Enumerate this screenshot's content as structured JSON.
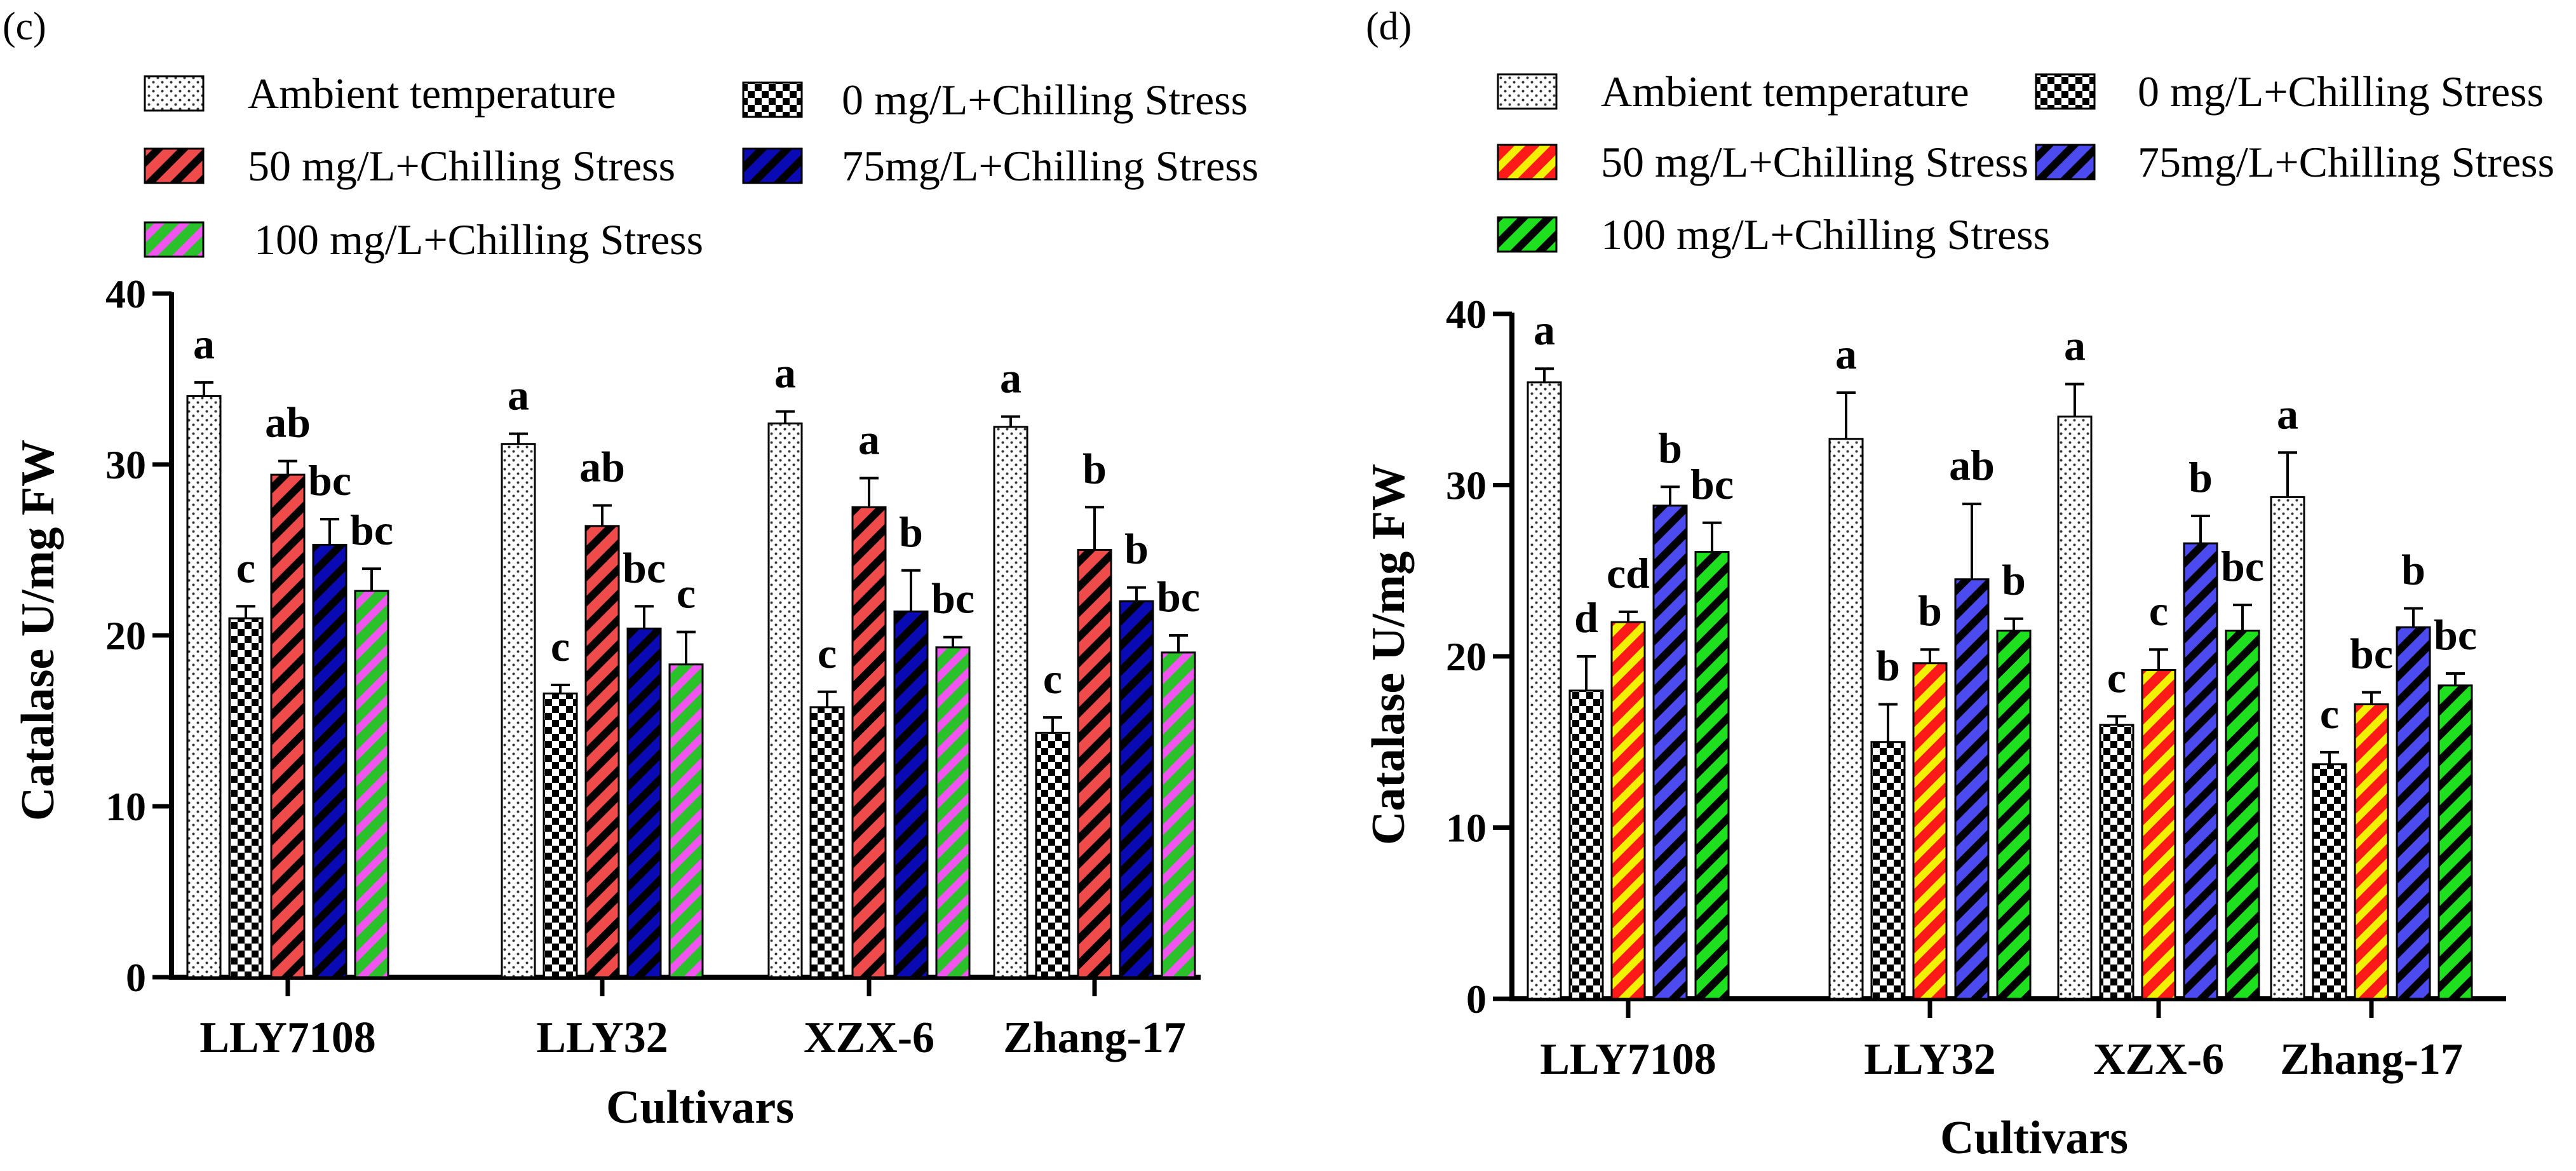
{
  "chart_data": [
    {
      "type": "bar",
      "panel": "(c)",
      "title": "",
      "xlabel": "Cultivars",
      "ylabel": "Catalase U/mg FW",
      "ylim": [
        0,
        40
      ],
      "yticks": [
        "0",
        "10",
        "20",
        "30",
        "40"
      ],
      "categories": [
        "LLY7108",
        "LLY32",
        "XZX-6",
        "Zhang-17"
      ],
      "series": [
        {
          "name": "Ambient temperature",
          "pattern": "dots",
          "colors": [
            "#ffffff",
            "#333333"
          ],
          "values": [
            34.0,
            31.2,
            32.4,
            32.2
          ],
          "errors": [
            0.8,
            0.6,
            0.7,
            0.6
          ],
          "labels": [
            "a",
            "a",
            "a",
            "a"
          ]
        },
        {
          "name": "0 mg/L+Chilling Stress",
          "pattern": "checker",
          "colors": [
            "#ffffff",
            "#000000"
          ],
          "values": [
            21.0,
            16.6,
            15.8,
            14.3
          ],
          "errors": [
            0.7,
            0.5,
            0.9,
            0.9
          ],
          "labels": [
            "c",
            "c",
            "c",
            "c"
          ]
        },
        {
          "name": "50 mg/L+Chilling Stress",
          "pattern": "stripes",
          "colors": [
            "#ef4b4b",
            "#000000"
          ],
          "values": [
            29.4,
            26.4,
            27.5,
            25.0
          ],
          "errors": [
            0.8,
            1.2,
            1.7,
            2.5
          ],
          "labels": [
            "ab",
            "ab",
            "a",
            "b"
          ]
        },
        {
          "name": "75mg/L+Chilling Stress",
          "pattern": "stripes",
          "colors": [
            "#0a0ab4",
            "#000000"
          ],
          "values": [
            25.3,
            20.4,
            21.4,
            22.0
          ],
          "errors": [
            1.5,
            1.3,
            2.4,
            0.8
          ],
          "labels": [
            "bc",
            "bc",
            "b",
            "b"
          ]
        },
        {
          "name": "100 mg/L+Chilling Stress",
          "pattern": "stripes",
          "colors": [
            "#2bc12b",
            "#f055f0"
          ],
          "values": [
            22.6,
            18.3,
            19.3,
            19.0
          ],
          "errors": [
            1.3,
            1.9,
            0.6,
            1.0
          ],
          "labels": [
            "bc",
            "c",
            "bc",
            "bc"
          ]
        }
      ]
    },
    {
      "type": "bar",
      "panel": "(d)",
      "title": "",
      "xlabel": "Cultivars",
      "ylabel": "Catalase U/mg FW",
      "ylim": [
        0,
        40
      ],
      "yticks": [
        "0",
        "10",
        "20",
        "30",
        "40"
      ],
      "categories": [
        "LLY7108",
        "LLY32",
        "XZX-6",
        "Zhang-17"
      ],
      "series": [
        {
          "name": "Ambient temperature",
          "pattern": "dots",
          "colors": [
            "#ffffff",
            "#333333"
          ],
          "values": [
            36.0,
            32.7,
            34.0,
            29.3
          ],
          "errors": [
            0.8,
            2.7,
            1.9,
            2.6
          ],
          "labels": [
            "a",
            "a",
            "a",
            "a"
          ]
        },
        {
          "name": "0 mg/L+Chilling Stress",
          "pattern": "checker",
          "colors": [
            "#ffffff",
            "#000000"
          ],
          "values": [
            18.0,
            15.0,
            16.0,
            13.7
          ],
          "errors": [
            2.0,
            2.2,
            0.5,
            0.7
          ],
          "labels": [
            "d",
            "b",
            "c",
            "c"
          ]
        },
        {
          "name": "50 mg/L+Chilling Stress",
          "pattern": "stripes",
          "colors": [
            "#ff1a1a",
            "#f2f200"
          ],
          "values": [
            22.0,
            19.6,
            19.2,
            17.2
          ],
          "errors": [
            0.6,
            0.8,
            1.2,
            0.7
          ],
          "labels": [
            "cd",
            "b",
            "c",
            "bc"
          ]
        },
        {
          "name": "75mg/L+Chilling Stress",
          "pattern": "stripes",
          "colors": [
            "#4b4bef",
            "#000000"
          ],
          "values": [
            28.8,
            24.5,
            26.6,
            21.7
          ],
          "errors": [
            1.1,
            4.4,
            1.6,
            1.1
          ],
          "labels": [
            "b",
            "ab",
            "b",
            "b"
          ]
        },
        {
          "name": "100 mg/L+Chilling Stress",
          "pattern": "stripes",
          "colors": [
            "#1fe01f",
            "#000000"
          ],
          "values": [
            26.1,
            21.5,
            21.5,
            18.3
          ],
          "errors": [
            1.7,
            0.7,
            1.5,
            0.7
          ],
          "labels": [
            "bc",
            "b",
            "bc",
            "bc"
          ]
        }
      ]
    }
  ]
}
